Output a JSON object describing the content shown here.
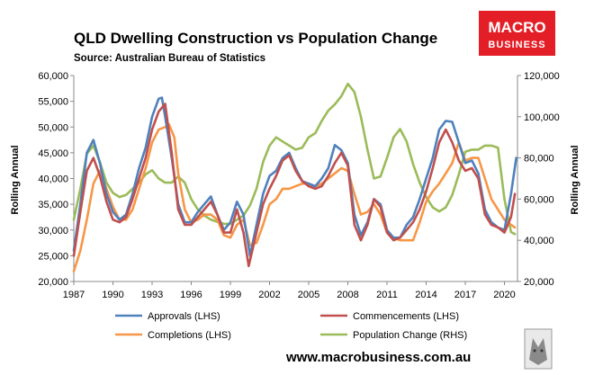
{
  "brand": {
    "line1": "MACRO",
    "line2": "BUSINESS",
    "color": "#e41e26"
  },
  "footer": {
    "url": "www.macrobusiness.com.au"
  },
  "chart_data": {
    "type": "line",
    "title": "QLD Dwelling Construction vs Population Change",
    "subtitle": "Source: Australian Bureau of Statistics",
    "ylabel_left": "Rolling Annual",
    "ylabel_right": "Rolling Annual",
    "ylim_left": [
      20000,
      60000
    ],
    "ylim_right": [
      20000,
      120000
    ],
    "yticks_left": [
      "20,000",
      "25,000",
      "30,000",
      "35,000",
      "40,000",
      "45,000",
      "50,000",
      "55,000",
      "60,000"
    ],
    "yticks_right": [
      "20,000",
      "40,000",
      "60,000",
      "80,000",
      "100,000",
      "120,000"
    ],
    "xlim": [
      1987,
      2021
    ],
    "xticks": [
      "1987",
      "1990",
      "1993",
      "1996",
      "1999",
      "2002",
      "2005",
      "2008",
      "2011",
      "2014",
      "2017",
      "2020"
    ],
    "grid": false,
    "legend_position": "bottom",
    "series": [
      {
        "name": "Approvals (LHS)",
        "axis": "left",
        "color": "#4f81bd",
        "points": [
          [
            1987.0,
            26000
          ],
          [
            1987.5,
            35000
          ],
          [
            1988.0,
            45000
          ],
          [
            1988.5,
            47500
          ],
          [
            1989.0,
            43000
          ],
          [
            1989.5,
            37000
          ],
          [
            1990.0,
            33500
          ],
          [
            1990.5,
            32000
          ],
          [
            1991.0,
            33000
          ],
          [
            1991.5,
            37000
          ],
          [
            1992.0,
            42000
          ],
          [
            1992.5,
            46000
          ],
          [
            1993.0,
            52000
          ],
          [
            1993.5,
            55500
          ],
          [
            1993.75,
            55700
          ],
          [
            1994.0,
            52000
          ],
          [
            1994.5,
            44000
          ],
          [
            1995.0,
            35000
          ],
          [
            1995.5,
            31500
          ],
          [
            1996.0,
            31500
          ],
          [
            1996.5,
            33500
          ],
          [
            1997.0,
            35000
          ],
          [
            1997.5,
            36500
          ],
          [
            1998.0,
            33000
          ],
          [
            1998.5,
            30000
          ],
          [
            1999.0,
            31500
          ],
          [
            1999.5,
            35500
          ],
          [
            2000.0,
            33000
          ],
          [
            2000.5,
            25000
          ],
          [
            2001.0,
            31000
          ],
          [
            2001.5,
            37000
          ],
          [
            2002.0,
            40500
          ],
          [
            2002.5,
            41500
          ],
          [
            2003.0,
            44000
          ],
          [
            2003.5,
            45000
          ],
          [
            2004.0,
            42000
          ],
          [
            2004.5,
            39500
          ],
          [
            2005.0,
            39000
          ],
          [
            2005.5,
            38500
          ],
          [
            2006.0,
            40000
          ],
          [
            2006.5,
            42000
          ],
          [
            2007.0,
            46500
          ],
          [
            2007.5,
            45500
          ],
          [
            2008.0,
            43000
          ],
          [
            2008.5,
            33000
          ],
          [
            2009.0,
            29000
          ],
          [
            2009.5,
            31500
          ],
          [
            2010.0,
            36000
          ],
          [
            2010.5,
            35000
          ],
          [
            2011.0,
            30000
          ],
          [
            2011.5,
            28500
          ],
          [
            2012.0,
            28500
          ],
          [
            2012.5,
            31000
          ],
          [
            2013.0,
            32500
          ],
          [
            2013.5,
            36000
          ],
          [
            2014.0,
            40000
          ],
          [
            2014.5,
            44000
          ],
          [
            2015.0,
            49500
          ],
          [
            2015.5,
            51200
          ],
          [
            2016.0,
            51000
          ],
          [
            2016.5,
            47000
          ],
          [
            2017.0,
            43000
          ],
          [
            2017.5,
            43500
          ],
          [
            2018.0,
            41000
          ],
          [
            2018.5,
            34000
          ],
          [
            2019.0,
            31500
          ],
          [
            2019.5,
            30500
          ],
          [
            2020.0,
            30000
          ],
          [
            2020.5,
            37000
          ],
          [
            2020.9,
            44000
          ]
        ]
      },
      {
        "name": "Commencements (LHS)",
        "axis": "left",
        "color": "#c0504d",
        "points": [
          [
            1987.0,
            25000
          ],
          [
            1987.5,
            33500
          ],
          [
            1988.0,
            41500
          ],
          [
            1988.5,
            44000
          ],
          [
            1989.0,
            40500
          ],
          [
            1989.5,
            35500
          ],
          [
            1990.0,
            32000
          ],
          [
            1990.5,
            31500
          ],
          [
            1991.0,
            32500
          ],
          [
            1991.5,
            36000
          ],
          [
            1992.0,
            40000
          ],
          [
            1992.5,
            44000
          ],
          [
            1993.0,
            49500
          ],
          [
            1993.5,
            53000
          ],
          [
            1994.0,
            54500
          ],
          [
            1994.5,
            45000
          ],
          [
            1995.0,
            34000
          ],
          [
            1995.5,
            31000
          ],
          [
            1996.0,
            31000
          ],
          [
            1996.5,
            32500
          ],
          [
            1997.0,
            34000
          ],
          [
            1997.5,
            35500
          ],
          [
            1998.0,
            33000
          ],
          [
            1998.5,
            29500
          ],
          [
            1999.0,
            29500
          ],
          [
            1999.5,
            34000
          ],
          [
            2000.0,
            29500
          ],
          [
            2000.4,
            23000
          ],
          [
            2001.0,
            29500
          ],
          [
            2001.5,
            35000
          ],
          [
            2002.0,
            38000
          ],
          [
            2002.5,
            40500
          ],
          [
            2003.0,
            43500
          ],
          [
            2003.5,
            44500
          ],
          [
            2004.0,
            41500
          ],
          [
            2004.5,
            39500
          ],
          [
            2005.0,
            38500
          ],
          [
            2005.5,
            38000
          ],
          [
            2006.0,
            38500
          ],
          [
            2006.5,
            40500
          ],
          [
            2007.0,
            43000
          ],
          [
            2007.5,
            45000
          ],
          [
            2008.0,
            42500
          ],
          [
            2008.5,
            31000
          ],
          [
            2009.0,
            28000
          ],
          [
            2009.5,
            31000
          ],
          [
            2010.0,
            36000
          ],
          [
            2010.5,
            34500
          ],
          [
            2011.0,
            29500
          ],
          [
            2011.5,
            28000
          ],
          [
            2012.0,
            28500
          ],
          [
            2012.5,
            30000
          ],
          [
            2013.0,
            31500
          ],
          [
            2013.5,
            34000
          ],
          [
            2014.0,
            37500
          ],
          [
            2014.5,
            42000
          ],
          [
            2015.0,
            47000
          ],
          [
            2015.5,
            49500
          ],
          [
            2016.0,
            47000
          ],
          [
            2016.5,
            43500
          ],
          [
            2017.0,
            41500
          ],
          [
            2017.5,
            42000
          ],
          [
            2018.0,
            40000
          ],
          [
            2018.5,
            33000
          ],
          [
            2019.0,
            31000
          ],
          [
            2019.5,
            30500
          ],
          [
            2020.0,
            29500
          ],
          [
            2020.5,
            32500
          ],
          [
            2020.8,
            37000
          ]
        ]
      },
      {
        "name": "Completions (LHS)",
        "axis": "left",
        "color": "#f79646",
        "points": [
          [
            1987.0,
            22000
          ],
          [
            1987.5,
            26000
          ],
          [
            1988.0,
            32000
          ],
          [
            1988.5,
            39000
          ],
          [
            1989.0,
            41500
          ],
          [
            1989.5,
            38000
          ],
          [
            1990.0,
            34500
          ],
          [
            1990.5,
            32000
          ],
          [
            1991.0,
            32000
          ],
          [
            1991.5,
            34000
          ],
          [
            1992.0,
            38000
          ],
          [
            1992.5,
            42000
          ],
          [
            1993.0,
            47000
          ],
          [
            1993.5,
            49500
          ],
          [
            1994.0,
            50000
          ],
          [
            1994.3,
            50500
          ],
          [
            1994.7,
            48000
          ],
          [
            1995.0,
            41000
          ],
          [
            1995.5,
            34000
          ],
          [
            1996.0,
            31500
          ],
          [
            1996.5,
            32000
          ],
          [
            1997.0,
            33000
          ],
          [
            1997.5,
            33000
          ],
          [
            1998.0,
            32000
          ],
          [
            1998.5,
            29000
          ],
          [
            1999.0,
            28500
          ],
          [
            1999.5,
            31000
          ],
          [
            2000.0,
            32000
          ],
          [
            2000.5,
            27000
          ],
          [
            2001.0,
            27500
          ],
          [
            2001.5,
            31000
          ],
          [
            2002.0,
            35000
          ],
          [
            2002.5,
            36000
          ],
          [
            2003.0,
            38000
          ],
          [
            2003.5,
            38000
          ],
          [
            2004.0,
            38500
          ],
          [
            2004.5,
            39000
          ],
          [
            2005.0,
            39000
          ],
          [
            2005.5,
            38500
          ],
          [
            2006.0,
            39000
          ],
          [
            2006.5,
            40000
          ],
          [
            2007.0,
            41000
          ],
          [
            2007.5,
            42000
          ],
          [
            2008.0,
            41500
          ],
          [
            2008.5,
            37000
          ],
          [
            2009.0,
            33000
          ],
          [
            2009.5,
            33500
          ],
          [
            2010.0,
            35000
          ],
          [
            2010.5,
            33000
          ],
          [
            2011.0,
            29500
          ],
          [
            2011.5,
            28500
          ],
          [
            2012.0,
            28000
          ],
          [
            2012.5,
            28000
          ],
          [
            2013.0,
            28000
          ],
          [
            2013.5,
            31500
          ],
          [
            2014.0,
            35500
          ],
          [
            2014.5,
            37500
          ],
          [
            2015.0,
            39000
          ],
          [
            2015.5,
            41000
          ],
          [
            2016.0,
            43000
          ],
          [
            2016.5,
            47000
          ],
          [
            2017.0,
            43500
          ],
          [
            2017.5,
            44000
          ],
          [
            2018.0,
            44000
          ],
          [
            2018.5,
            40000
          ],
          [
            2019.0,
            36000
          ],
          [
            2019.5,
            34000
          ],
          [
            2020.0,
            32000
          ],
          [
            2020.5,
            31000
          ],
          [
            2020.8,
            30500
          ]
        ]
      },
      {
        "name": "Population Change (RHS)",
        "axis": "right",
        "color": "#9bbb59",
        "points": [
          [
            1987.0,
            50000
          ],
          [
            1987.5,
            65000
          ],
          [
            1988.0,
            82000
          ],
          [
            1988.5,
            86000
          ],
          [
            1989.0,
            78000
          ],
          [
            1989.5,
            68000
          ],
          [
            1990.0,
            63000
          ],
          [
            1990.5,
            61000
          ],
          [
            1991.0,
            62000
          ],
          [
            1991.5,
            65000
          ],
          [
            1992.0,
            68000
          ],
          [
            1992.5,
            72000
          ],
          [
            1993.0,
            74000
          ],
          [
            1993.5,
            70000
          ],
          [
            1994.0,
            68000
          ],
          [
            1994.5,
            68000
          ],
          [
            1995.0,
            71000
          ],
          [
            1995.5,
            68000
          ],
          [
            1996.0,
            60000
          ],
          [
            1996.5,
            55000
          ],
          [
            1997.0,
            52000
          ],
          [
            1997.5,
            50000
          ],
          [
            1998.0,
            49000
          ],
          [
            1998.5,
            48000
          ],
          [
            1999.0,
            48000
          ],
          [
            1999.5,
            50000
          ],
          [
            2000.0,
            52000
          ],
          [
            2000.5,
            57000
          ],
          [
            2001.0,
            65000
          ],
          [
            2001.5,
            78000
          ],
          [
            2002.0,
            86000
          ],
          [
            2002.5,
            90000
          ],
          [
            2003.0,
            88000
          ],
          [
            2003.5,
            86000
          ],
          [
            2004.0,
            84000
          ],
          [
            2004.5,
            85000
          ],
          [
            2005.0,
            90000
          ],
          [
            2005.5,
            92000
          ],
          [
            2006.0,
            98000
          ],
          [
            2006.5,
            103000
          ],
          [
            2007.0,
            106000
          ],
          [
            2007.5,
            110000
          ],
          [
            2008.0,
            116000
          ],
          [
            2008.5,
            112000
          ],
          [
            2009.0,
            100000
          ],
          [
            2009.5,
            84000
          ],
          [
            2010.0,
            70000
          ],
          [
            2010.5,
            71000
          ],
          [
            2011.0,
            80000
          ],
          [
            2011.5,
            90000
          ],
          [
            2012.0,
            94000
          ],
          [
            2012.5,
            88000
          ],
          [
            2013.0,
            77000
          ],
          [
            2013.5,
            68000
          ],
          [
            2014.0,
            61000
          ],
          [
            2014.5,
            56000
          ],
          [
            2015.0,
            54000
          ],
          [
            2015.5,
            56000
          ],
          [
            2016.0,
            62000
          ],
          [
            2016.5,
            72000
          ],
          [
            2017.0,
            83000
          ],
          [
            2017.5,
            84000
          ],
          [
            2018.0,
            84000
          ],
          [
            2018.5,
            86000
          ],
          [
            2019.0,
            86000
          ],
          [
            2019.5,
            85000
          ],
          [
            2020.0,
            60000
          ],
          [
            2020.5,
            44000
          ],
          [
            2020.8,
            43000
          ]
        ]
      }
    ]
  }
}
